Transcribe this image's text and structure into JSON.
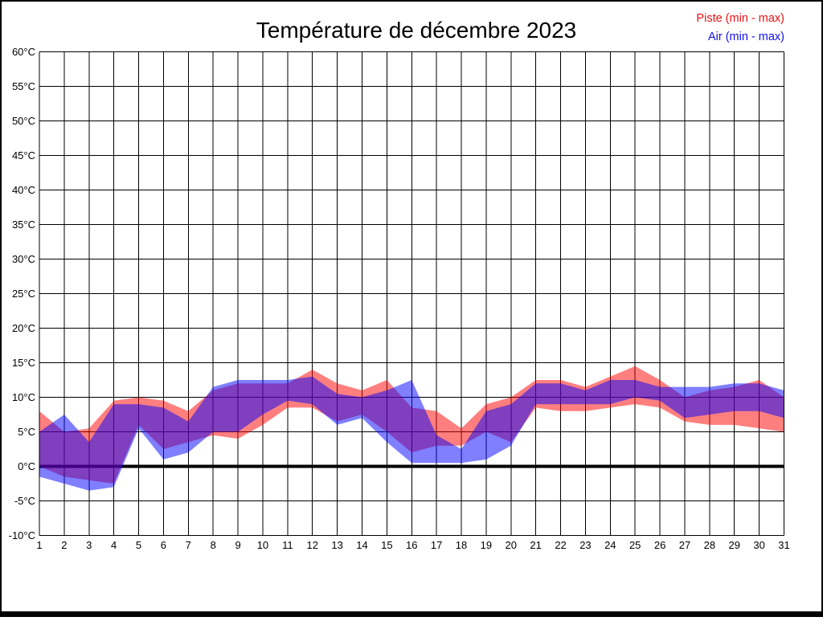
{
  "page": {
    "background": "#ffffff",
    "border_color": "#000000"
  },
  "header": {
    "title": "Température de décembre 2023",
    "legend": [
      {
        "label": "Piste (min - max)",
        "color": "#ee1111"
      },
      {
        "label": "Air (min - max)",
        "color": "#1111ee"
      }
    ]
  },
  "chart_data": {
    "type": "area",
    "subtype": "daily-min-max-bands",
    "title": "Température de décembre 2023",
    "xlabel": "",
    "ylabel": "",
    "x": [
      1,
      2,
      3,
      4,
      5,
      6,
      7,
      8,
      9,
      10,
      11,
      12,
      13,
      14,
      15,
      16,
      17,
      18,
      19,
      20,
      21,
      22,
      23,
      24,
      25,
      26,
      27,
      28,
      29,
      30,
      31
    ],
    "xlim": [
      1,
      31
    ],
    "ylim": [
      -10,
      60
    ],
    "ytick_step": 5,
    "ytick_suffix": "°C",
    "grid": true,
    "grid_color": "#000000",
    "zero_line": {
      "value": 0,
      "color": "#000000",
      "thick": true
    },
    "legend_position": "top-right",
    "series": [
      {
        "name": "Piste (min - max)",
        "color": "#ff0000",
        "fill_opacity": 0.5,
        "min": [
          0,
          -1.5,
          -2,
          -2.5,
          6,
          2.5,
          3.5,
          4.5,
          4,
          6,
          8.5,
          8.5,
          6.5,
          7.5,
          5,
          2,
          3,
          3,
          5,
          3.5,
          8.5,
          8,
          8,
          8.5,
          9,
          8.5,
          6.5,
          6,
          6,
          5.5,
          5
        ],
        "max": [
          8,
          5,
          5.5,
          9.5,
          10,
          9.5,
          8,
          11,
          12,
          12,
          12,
          14,
          12,
          11,
          12.5,
          8.5,
          8,
          5.5,
          9,
          10,
          12.5,
          12.5,
          11.5,
          13,
          14.5,
          12.5,
          10,
          11,
          11.5,
          12.5,
          10
        ]
      },
      {
        "name": "Air (min - max)",
        "color": "#0000ff",
        "fill_opacity": 0.5,
        "min": [
          -1.5,
          -2.5,
          -3.5,
          -3,
          5.5,
          1,
          2,
          5,
          5,
          7.5,
          9.5,
          9,
          6,
          7,
          3.5,
          0.5,
          0.5,
          0.5,
          1,
          3,
          9,
          9,
          9,
          9,
          10,
          9.5,
          7,
          7.5,
          8,
          8,
          7
        ],
        "max": [
          5,
          7.5,
          3.5,
          9,
          9,
          8.5,
          6.5,
          11.5,
          12.5,
          12.5,
          12.5,
          13,
          10.5,
          10,
          11,
          12.5,
          4.5,
          2.5,
          8,
          9,
          12,
          12,
          11,
          12.5,
          12.5,
          11.5,
          11.5,
          11.5,
          12,
          12,
          11
        ]
      }
    ]
  }
}
